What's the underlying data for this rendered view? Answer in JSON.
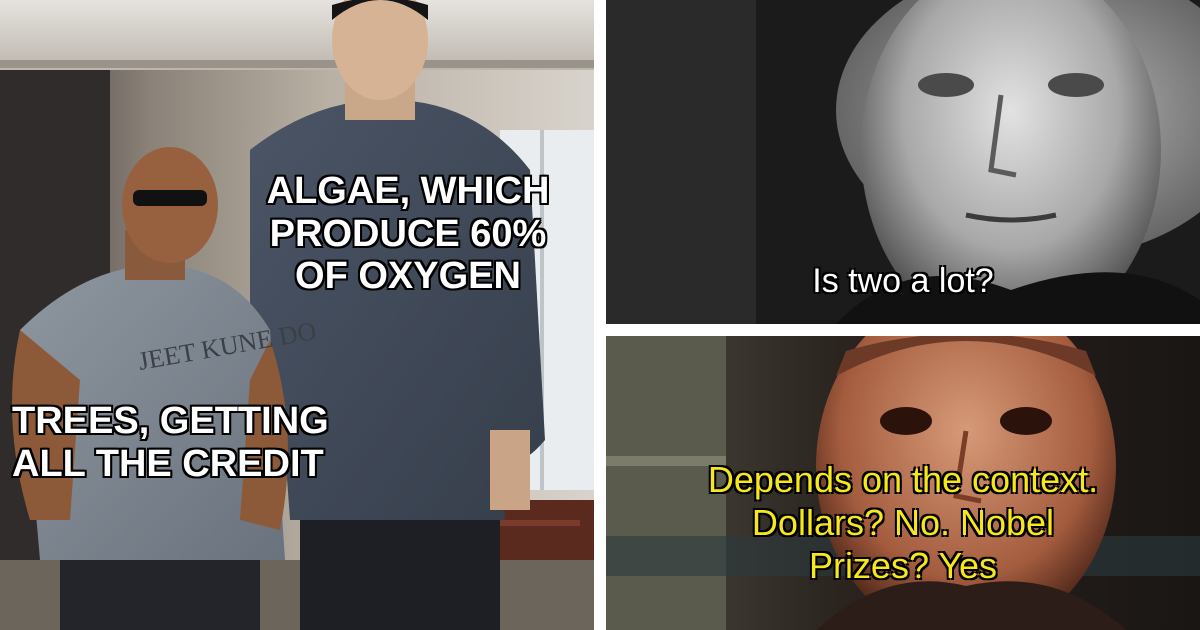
{
  "panels": {
    "left": {
      "top_caption": [
        "ALGAE, WHICH",
        "PRODUCE 60%",
        "OF OXYGEN"
      ],
      "bottom_caption": [
        "TREES, GETTING",
        "ALL THE CREDIT"
      ]
    },
    "top_right": {
      "caption": "Is two a lot?"
    },
    "bottom_right": {
      "caption": [
        "Depends on the context.",
        "Dollars? No. Nobel",
        "Prizes? Yes"
      ]
    }
  },
  "colors": {
    "meme_text": "#ffffff",
    "subtitle_yellow": "#f7e81e",
    "divider": "#ffffff"
  }
}
